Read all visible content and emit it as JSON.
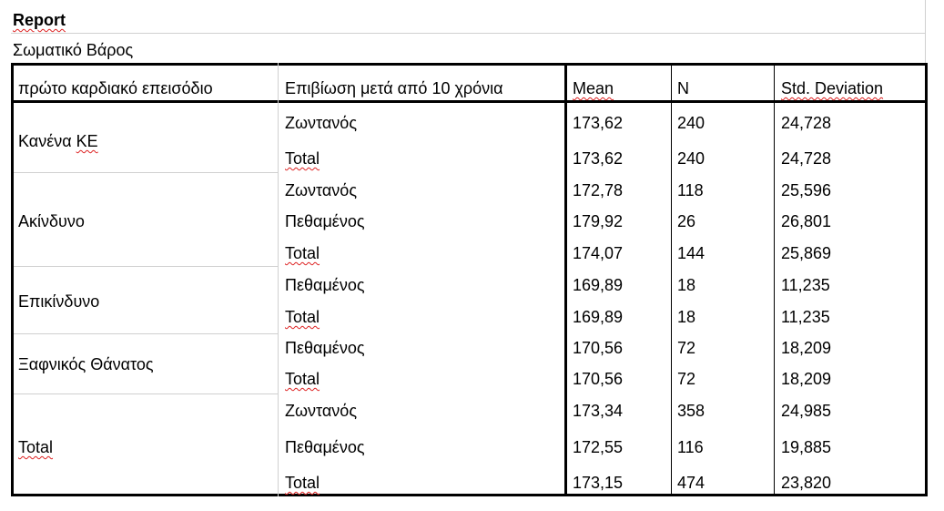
{
  "report": {
    "title": "Report",
    "subtitle": "Σωματικό Βάρος",
    "headers": [
      "πρώτο καρδιακό επεισόδιο",
      "Επιβίωση μετά από 10 χρόνια",
      "Mean",
      "N",
      "Std. Deviation"
    ],
    "groups": [
      {
        "label": "Κανένα ΚΕ",
        "rows": [
          {
            "sub": "Ζωντανός",
            "mean": "173,62",
            "n": "240",
            "sd": "24,728"
          },
          {
            "sub": "Total",
            "mean": "173,62",
            "n": "240",
            "sd": "24,728"
          }
        ]
      },
      {
        "label": "Ακίνδυνο",
        "rows": [
          {
            "sub": "Ζωντανός",
            "mean": "172,78",
            "n": "118",
            "sd": "25,596"
          },
          {
            "sub": "Πεθαμένος",
            "mean": "179,92",
            "n": "26",
            "sd": "26,801"
          },
          {
            "sub": "Total",
            "mean": "174,07",
            "n": "144",
            "sd": "25,869"
          }
        ]
      },
      {
        "label": "Επικίνδυνο",
        "rows": [
          {
            "sub": "Πεθαμένος",
            "mean": "169,89",
            "n": "18",
            "sd": "11,235"
          },
          {
            "sub": "Total",
            "mean": "169,89",
            "n": "18",
            "sd": "11,235"
          }
        ]
      },
      {
        "label": "Ξαφνικός Θάνατος",
        "rows": [
          {
            "sub": "Πεθαμένος",
            "mean": "170,56",
            "n": "72",
            "sd": "18,209"
          },
          {
            "sub": "Total",
            "mean": "170,56",
            "n": "72",
            "sd": "18,209"
          }
        ]
      },
      {
        "label": "Total",
        "rows": [
          {
            "sub": "Ζωντανός",
            "mean": "173,34",
            "n": "358",
            "sd": "24,985"
          },
          {
            "sub": "Πεθαμένος",
            "mean": "172,55",
            "n": "116",
            "sd": "19,885"
          },
          {
            "sub": "Total",
            "mean": "173,15",
            "n": "474",
            "sd": "23,820"
          }
        ]
      }
    ]
  }
}
